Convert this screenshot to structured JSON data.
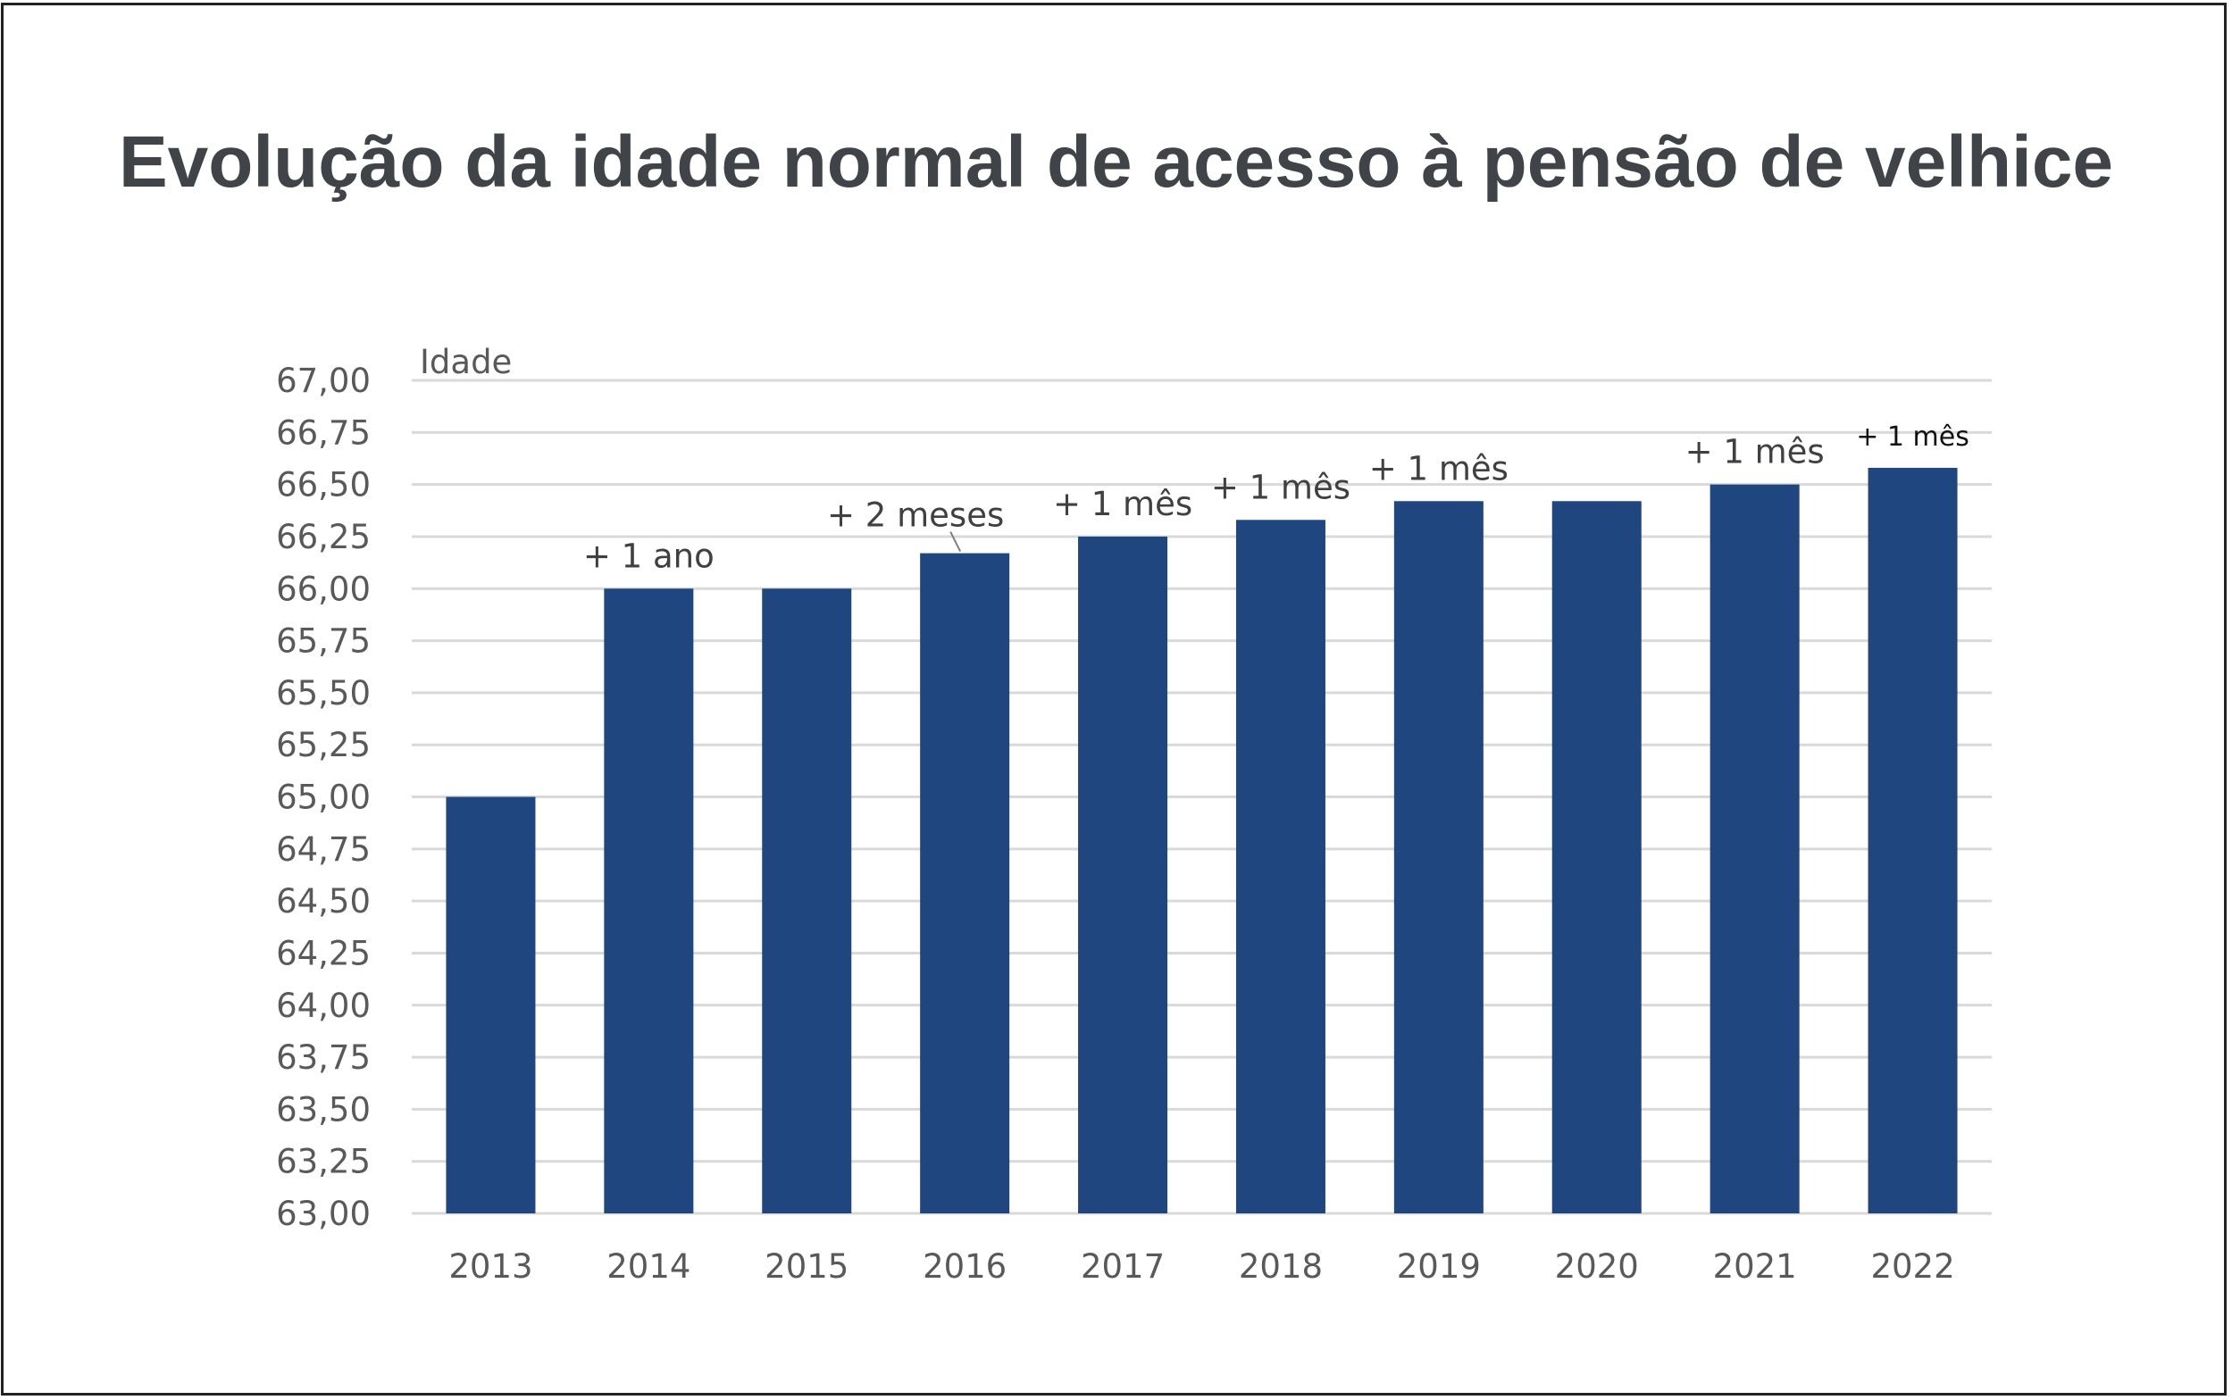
{
  "chart_data": {
    "type": "bar",
    "title": "Evolução da idade normal de acesso à pensão de velhice",
    "ylabel": "Idade",
    "xlabel": "",
    "ylim": [
      63,
      67
    ],
    "yticks": [
      "63,00",
      "63,25",
      "63,50",
      "63,75",
      "64,00",
      "64,25",
      "64,50",
      "64,75",
      "65,00",
      "65,25",
      "65,50",
      "65,75",
      "66,00",
      "66,25",
      "66,50",
      "66,75",
      "67,00"
    ],
    "grid": true,
    "categories": [
      "2013",
      "2014",
      "2015",
      "2016",
      "2017",
      "2018",
      "2019",
      "2020",
      "2021",
      "2022"
    ],
    "values": [
      65.0,
      66.0,
      66.0,
      66.17,
      66.25,
      66.33,
      66.42,
      66.42,
      66.5,
      66.58
    ],
    "annotations": [
      "",
      "+ 1 ano",
      "",
      "+ 2 meses",
      "+ 1 mês",
      "+ 1 mês",
      "+ 1 mês",
      "",
      "+ 1 mês",
      "+ 1 mês"
    ],
    "bar_color": "#1F467F"
  }
}
